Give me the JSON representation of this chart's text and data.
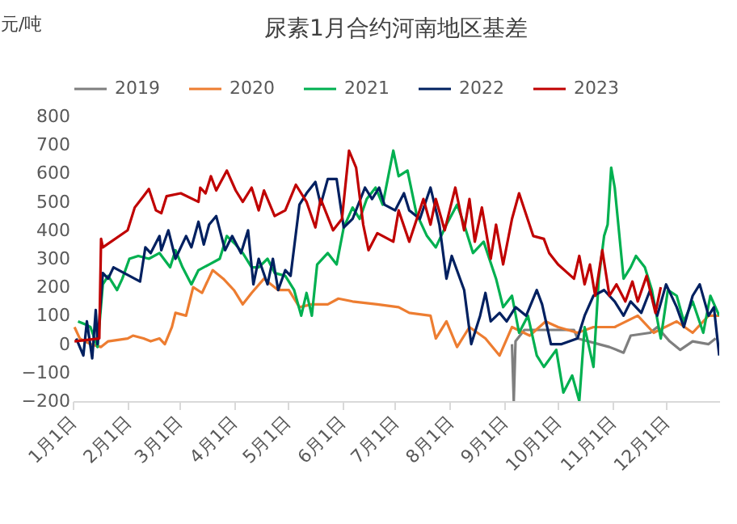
{
  "chart_data": {
    "type": "line",
    "title": "尿素1月合约河南地区基差",
    "ylabel": "元/吨",
    "legend": "top",
    "grid": false,
    "line_style": "solid",
    "xlim": [
      "--01-01",
      "--12-31"
    ],
    "xticks": [
      {
        "value": "--01-01",
        "label": "1月1日"
      },
      {
        "value": "--02-01",
        "label": "2月1日"
      },
      {
        "value": "--03-01",
        "label": "3月1日"
      },
      {
        "value": "--04-01",
        "label": "4月1日"
      },
      {
        "value": "--05-01",
        "label": "5月1日"
      },
      {
        "value": "--06-01",
        "label": "6月1日"
      },
      {
        "value": "--07-01",
        "label": "7月1日"
      },
      {
        "value": "--08-01",
        "label": "8月1日"
      },
      {
        "value": "--09-01",
        "label": "9月1日"
      },
      {
        "value": "--10-01",
        "label": "10月1日"
      },
      {
        "value": "--11-01",
        "label": "11月1日"
      },
      {
        "value": "--12-01",
        "label": "12月1日"
      }
    ],
    "ylim": [
      -200,
      800
    ],
    "yticks": [
      -200,
      -100,
      0,
      100,
      200,
      300,
      400,
      500,
      600,
      700,
      800
    ],
    "series": [
      {
        "name": "2019",
        "color": "#7f7f7f",
        "x": [
          "--09-05",
          "--09-06",
          "--09-07",
          "--09-12",
          "--10-10",
          "--10-12",
          "--10-24",
          "--10-30",
          "--11-07",
          "--11-11",
          "--11-22",
          "--11-26",
          "--12-03",
          "--12-09",
          "--12-16",
          "--12-25",
          "--12-29"
        ],
        "values": [
          0,
          -200,
          10,
          50,
          50,
          20,
          0,
          -10,
          -30,
          30,
          40,
          60,
          10,
          -20,
          10,
          0,
          20
        ]
      },
      {
        "name": "2020",
        "color": "#ed7d31",
        "x": [
          "--01-02",
          "--01-05",
          "--01-11",
          "--01-17",
          "--01-21",
          "--02-01",
          "--02-04",
          "--02-10",
          "--02-14",
          "--02-19",
          "--02-22",
          "--02-26",
          "--02-28",
          "--03-05",
          "--03-09",
          "--03-14",
          "--03-20",
          "--03-26",
          "--04-01",
          "--04-06",
          "--04-11",
          "--04-18",
          "--04-26",
          "--05-02",
          "--05-08",
          "--05-15",
          "--05-24",
          "--05-30",
          "--06-07",
          "--06-21",
          "--07-03",
          "--07-09",
          "--07-21",
          "--07-24",
          "--07-30",
          "--08-05",
          "--08-12",
          "--08-21",
          "--08-29",
          "--09-05",
          "--09-15",
          "--09-24",
          "--10-01",
          "--10-12",
          "--10-21",
          "--11-02",
          "--11-15",
          "--11-24",
          "--12-07",
          "--12-16",
          "--12-25",
          "--12-31"
        ],
        "values": [
          60,
          20,
          0,
          -10,
          10,
          20,
          30,
          20,
          10,
          20,
          0,
          60,
          110,
          100,
          200,
          180,
          260,
          230,
          190,
          140,
          180,
          230,
          190,
          190,
          130,
          140,
          140,
          160,
          150,
          140,
          130,
          110,
          100,
          20,
          80,
          -10,
          60,
          20,
          -40,
          60,
          30,
          80,
          60,
          40,
          60,
          60,
          100,
          40,
          80,
          40,
          100,
          100
        ]
      },
      {
        "name": "2021",
        "color": "#00b050",
        "x": [
          "--01-04",
          "--01-08",
          "--01-11",
          "--01-15",
          "--01-18",
          "--01-21",
          "--01-26",
          "--01-29",
          "--02-02",
          "--02-07",
          "--02-13",
          "--02-19",
          "--02-25",
          "--02-28",
          "--03-03",
          "--03-08",
          "--03-12",
          "--03-18",
          "--03-24",
          "--03-28",
          "--04-02",
          "--04-06",
          "--04-11",
          "--04-15",
          "--04-20",
          "--04-24",
          "--04-30",
          "--05-05",
          "--05-09",
          "--05-12",
          "--05-15",
          "--05-18",
          "--05-24",
          "--05-29",
          "--06-02",
          "--06-07",
          "--06-11",
          "--06-15",
          "--06-20",
          "--06-24",
          "--06-30",
          "--07-03",
          "--07-08",
          "--07-13",
          "--07-19",
          "--07-24",
          "--07-30",
          "--08-05",
          "--08-09",
          "--08-14",
          "--08-20",
          "--08-27",
          "--08-31",
          "--09-05",
          "--09-09",
          "--09-14",
          "--09-19",
          "--09-23",
          "--09-30",
          "--10-04",
          "--10-09",
          "--10-13",
          "--10-16",
          "--10-21",
          "--10-24",
          "--10-27",
          "--10-29",
          "--10-31",
          "--11-02",
          "--11-07",
          "--11-11",
          "--11-14",
          "--11-19",
          "--11-23",
          "--11-28",
          "--12-02",
          "--12-07",
          "--12-11",
          "--12-16",
          "--12-22",
          "--12-26",
          "--12-31"
        ],
        "values": [
          80,
          70,
          60,
          -10,
          210,
          240,
          190,
          230,
          300,
          310,
          300,
          320,
          270,
          330,
          270,
          210,
          260,
          280,
          300,
          380,
          350,
          320,
          270,
          270,
          300,
          250,
          240,
          190,
          100,
          180,
          100,
          280,
          320,
          280,
          410,
          480,
          440,
          510,
          550,
          490,
          680,
          590,
          610,
          460,
          380,
          340,
          420,
          490,
          420,
          320,
          360,
          230,
          130,
          170,
          40,
          100,
          -40,
          -80,
          -20,
          -170,
          -110,
          -200,
          60,
          -80,
          230,
          380,
          420,
          620,
          550,
          230,
          270,
          310,
          270,
          190,
          20,
          190,
          170,
          80,
          150,
          40,
          170,
          100
        ]
      },
      {
        "name": "2022",
        "color": "#002060",
        "x": [
          "--01-03",
          "--01-07",
          "--01-09",
          "--01-12",
          "--01-14",
          "--01-15",
          "--01-18",
          "--01-21",
          "--01-24",
          "--01-30",
          "--02-08",
          "--02-11",
          "--02-14",
          "--02-19",
          "--02-20",
          "--02-24",
          "--02-28",
          "--03-05",
          "--03-08",
          "--03-12",
          "--03-15",
          "--03-18",
          "--03-22",
          "--03-27",
          "--03-31",
          "--04-05",
          "--04-09",
          "--04-12",
          "--04-15",
          "--04-20",
          "--04-23",
          "--04-26",
          "--04-30",
          "--05-03",
          "--05-08",
          "--05-12",
          "--05-17",
          "--05-20",
          "--05-24",
          "--05-29",
          "--06-02",
          "--06-07",
          "--06-14",
          "--06-18",
          "--06-22",
          "--06-25",
          "--07-01",
          "--07-06",
          "--07-09",
          "--07-15",
          "--07-21",
          "--07-26",
          "--07-30",
          "--08-02",
          "--08-09",
          "--08-13",
          "--08-18",
          "--08-21",
          "--08-24",
          "--08-29",
          "--09-02",
          "--09-07",
          "--09-13",
          "--09-19",
          "--09-22",
          "--09-27",
          "--10-03",
          "--10-12",
          "--10-16",
          "--10-21",
          "--10-27",
          "--11-02",
          "--11-07",
          "--11-11",
          "--11-17",
          "--11-22",
          "--11-26",
          "--12-01",
          "--12-07",
          "--12-11",
          "--12-16",
          "--12-20",
          "--12-25",
          "--12-28",
          "--12-31"
        ],
        "values": [
          20,
          -40,
          80,
          -50,
          120,
          0,
          250,
          230,
          270,
          250,
          220,
          340,
          320,
          380,
          330,
          400,
          300,
          380,
          340,
          430,
          350,
          420,
          450,
          330,
          380,
          320,
          400,
          210,
          300,
          210,
          300,
          190,
          260,
          240,
          490,
          530,
          570,
          490,
          580,
          580,
          410,
          440,
          550,
          510,
          550,
          490,
          470,
          530,
          470,
          440,
          550,
          420,
          230,
          310,
          190,
          0,
          100,
          180,
          80,
          110,
          80,
          130,
          100,
          190,
          140,
          0,
          0,
          20,
          100,
          170,
          190,
          150,
          100,
          150,
          110,
          190,
          100,
          210,
          130,
          60,
          170,
          210,
          100,
          130,
          -40
        ]
      },
      {
        "name": "2023",
        "color": "#c00000",
        "x": [
          "--01-02",
          "--01-16",
          "--01-17",
          "--01-18",
          "--02-01",
          "--02-05",
          "--02-10",
          "--02-13",
          "--02-17",
          "--02-20",
          "--02-23",
          "--03-02",
          "--03-12",
          "--03-13",
          "--03-16",
          "--03-19",
          "--03-22",
          "--03-28",
          "--04-02",
          "--04-06",
          "--04-11",
          "--04-15",
          "--04-18",
          "--04-24",
          "--04-30",
          "--05-06",
          "--05-12",
          "--05-17",
          "--05-20",
          "--05-27",
          "--06-01",
          "--06-05",
          "--06-09",
          "--06-13",
          "--06-16",
          "--06-21",
          "--06-30",
          "--07-03",
          "--07-09",
          "--07-17",
          "--07-21",
          "--07-24",
          "--07-29",
          "--08-04",
          "--08-09",
          "--08-12",
          "--08-15",
          "--08-19",
          "--08-24",
          "--08-27",
          "--08-31",
          "--09-05",
          "--09-09",
          "--09-17",
          "--09-23",
          "--09-26",
          "--10-01",
          "--10-10",
          "--10-13",
          "--10-16",
          "--10-19",
          "--10-22",
          "--10-26",
          "--10-30",
          "--11-03",
          "--11-08",
          "--11-12",
          "--11-15",
          "--11-20",
          "--11-25",
          "--11-28"
        ],
        "values": [
          10,
          20,
          370,
          340,
          400,
          480,
          520,
          545,
          470,
          460,
          520,
          530,
          500,
          550,
          530,
          590,
          540,
          610,
          540,
          500,
          550,
          470,
          540,
          450,
          470,
          560,
          500,
          410,
          510,
          400,
          440,
          680,
          620,
          420,
          330,
          390,
          360,
          470,
          360,
          510,
          420,
          510,
          400,
          550,
          400,
          510,
          360,
          480,
          300,
          420,
          280,
          440,
          530,
          380,
          370,
          320,
          280,
          230,
          310,
          210,
          280,
          170,
          330,
          170,
          210,
          150,
          220,
          150,
          240,
          110,
          200
        ]
      }
    ]
  }
}
